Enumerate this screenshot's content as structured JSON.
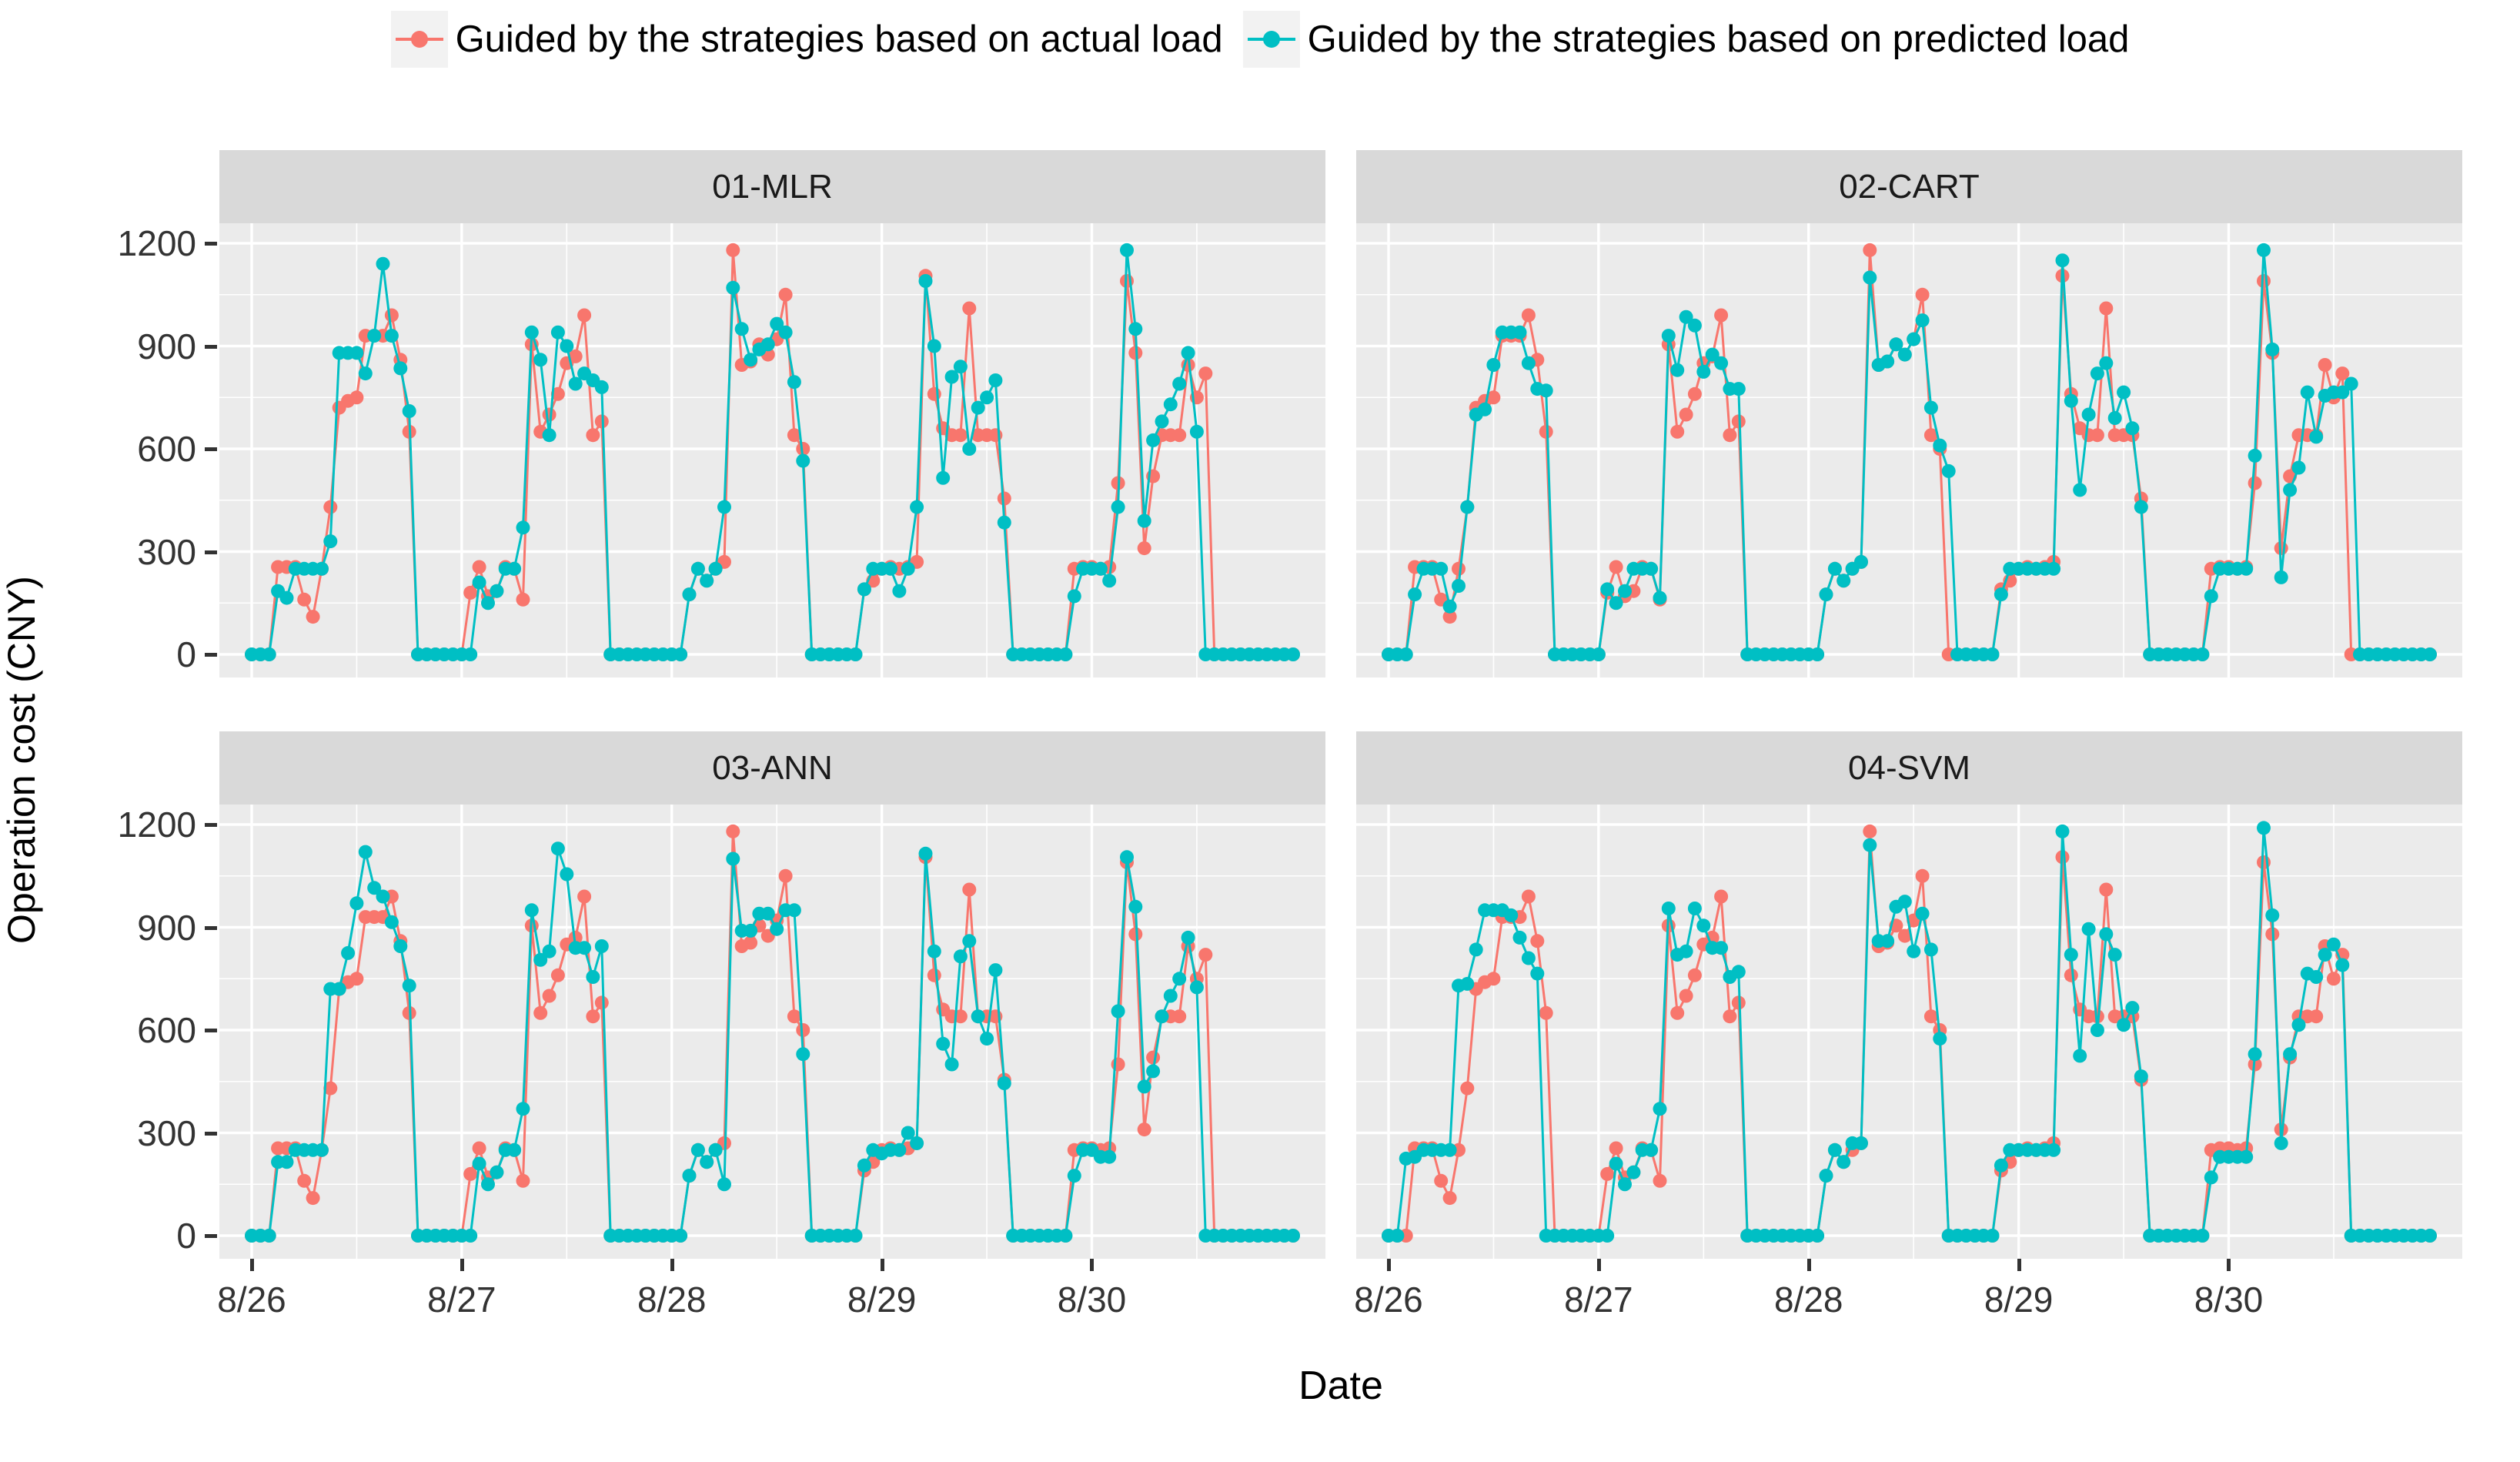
{
  "legend": {
    "items": [
      {
        "id": "actual",
        "label": "Guided by the strategies based on actual load"
      },
      {
        "id": "predicted",
        "label": "Guided by the strategies based on predicted load"
      }
    ]
  },
  "colors": {
    "actual": "#F8766D",
    "predicted": "#00BFC4",
    "panel_bg": "#EBEBEB",
    "strip_bg": "#D9D9D9",
    "grid": "#FFFFFF",
    "legend_key_bg": "#F2F2F2",
    "text": "#000000"
  },
  "chart_data": {
    "type": "line",
    "title": "",
    "xlabel": "Date",
    "ylabel": "Operation cost (CNY)",
    "x_tick_hours": [
      0,
      24,
      48,
      72,
      96
    ],
    "x_tick_labels": [
      "8/26",
      "8/27",
      "8/28",
      "8/29",
      "8/30"
    ],
    "hours_total": 120,
    "y_ticks": [
      0,
      300,
      600,
      900,
      1200
    ],
    "ylim": [
      0,
      1200
    ],
    "grid": "on",
    "legend_position": "top",
    "series": [
      {
        "name": "Guided by the strategies based on actual load",
        "color": "#F8766D",
        "shared_across_facets": true,
        "values": [
          0,
          0,
          0,
          255,
          255,
          255,
          160,
          110,
          250,
          430,
          720,
          740,
          750,
          930,
          930,
          930,
          990,
          860,
          650,
          0,
          0,
          0,
          0,
          0,
          0,
          180,
          255,
          170,
          185,
          255,
          250,
          160,
          905,
          650,
          700,
          760,
          850,
          870,
          990,
          640,
          680,
          0,
          0,
          0,
          0,
          0,
          0,
          0,
          0,
          0,
          175,
          250,
          215,
          250,
          270,
          1180,
          845,
          855,
          905,
          875,
          920,
          1050,
          640,
          600,
          0,
          0,
          0,
          0,
          0,
          0,
          190,
          215,
          250,
          255,
          250,
          255,
          270,
          1105,
          760,
          660,
          640,
          640,
          1010,
          640,
          640,
          640,
          455,
          0,
          0,
          0,
          0,
          0,
          0,
          0,
          250,
          255,
          255,
          250,
          255,
          500,
          1090,
          880,
          310,
          520,
          640,
          640,
          640,
          845,
          750,
          820,
          0,
          0,
          0,
          0,
          0,
          0,
          0,
          0,
          0,
          0
        ]
      }
    ],
    "panels": [
      {
        "facet": "01-MLR",
        "predicted_values": [
          0,
          0,
          0,
          185,
          165,
          250,
          250,
          250,
          250,
          330,
          880,
          880,
          880,
          820,
          930,
          1140,
          930,
          835,
          710,
          0,
          0,
          0,
          0,
          0,
          0,
          0,
          210,
          150,
          185,
          250,
          250,
          370,
          940,
          860,
          640,
          940,
          900,
          790,
          820,
          800,
          780,
          0,
          0,
          0,
          0,
          0,
          0,
          0,
          0,
          0,
          175,
          250,
          215,
          250,
          430,
          1070,
          950,
          860,
          890,
          905,
          965,
          940,
          795,
          565,
          0,
          0,
          0,
          0,
          0,
          0,
          190,
          250,
          250,
          250,
          185,
          250,
          430,
          1090,
          900,
          515,
          810,
          840,
          600,
          720,
          750,
          800,
          385,
          0,
          0,
          0,
          0,
          0,
          0,
          0,
          170,
          250,
          250,
          250,
          215,
          430,
          1180,
          950,
          390,
          625,
          680,
          730,
          790,
          880,
          650,
          0,
          0,
          0,
          0,
          0,
          0,
          0,
          0,
          0,
          0,
          0
        ]
      },
      {
        "facet": "02-CART",
        "predicted_values": [
          0,
          0,
          0,
          175,
          250,
          250,
          250,
          140,
          200,
          430,
          700,
          715,
          845,
          940,
          940,
          940,
          850,
          775,
          770,
          0,
          0,
          0,
          0,
          0,
          0,
          190,
          150,
          185,
          250,
          250,
          250,
          165,
          930,
          830,
          985,
          960,
          825,
          875,
          850,
          775,
          775,
          0,
          0,
          0,
          0,
          0,
          0,
          0,
          0,
          0,
          175,
          250,
          215,
          250,
          270,
          1100,
          845,
          855,
          905,
          875,
          920,
          975,
          720,
          610,
          535,
          0,
          0,
          0,
          0,
          0,
          175,
          250,
          250,
          250,
          250,
          250,
          250,
          1150,
          740,
          480,
          700,
          820,
          850,
          690,
          765,
          660,
          430,
          0,
          0,
          0,
          0,
          0,
          0,
          0,
          170,
          250,
          250,
          250,
          250,
          580,
          1180,
          890,
          225,
          480,
          545,
          765,
          635,
          755,
          765,
          765,
          790,
          0,
          0,
          0,
          0,
          0,
          0,
          0,
          0,
          0
        ]
      },
      {
        "facet": "03-ANN",
        "predicted_values": [
          0,
          0,
          0,
          215,
          215,
          250,
          250,
          250,
          250,
          720,
          720,
          825,
          970,
          1120,
          1015,
          990,
          915,
          845,
          730,
          0,
          0,
          0,
          0,
          0,
          0,
          0,
          210,
          150,
          185,
          250,
          250,
          370,
          950,
          805,
          830,
          1130,
          1055,
          840,
          840,
          755,
          845,
          0,
          0,
          0,
          0,
          0,
          0,
          0,
          0,
          0,
          175,
          250,
          215,
          250,
          150,
          1100,
          890,
          890,
          940,
          940,
          895,
          950,
          950,
          530,
          0,
          0,
          0,
          0,
          0,
          0,
          205,
          250,
          240,
          250,
          250,
          300,
          270,
          1115,
          830,
          560,
          500,
          815,
          860,
          640,
          575,
          775,
          445,
          0,
          0,
          0,
          0,
          0,
          0,
          0,
          175,
          250,
          250,
          230,
          230,
          655,
          1105,
          960,
          435,
          480,
          640,
          700,
          750,
          870,
          725,
          0,
          0,
          0,
          0,
          0,
          0,
          0,
          0,
          0,
          0,
          0
        ]
      },
      {
        "facet": "04-SVM",
        "predicted_values": [
          0,
          0,
          225,
          230,
          250,
          250,
          250,
          250,
          730,
          735,
          835,
          950,
          950,
          950,
          935,
          870,
          810,
          765,
          0,
          0,
          0,
          0,
          0,
          0,
          0,
          0,
          210,
          150,
          185,
          250,
          250,
          370,
          955,
          820,
          830,
          955,
          905,
          840,
          840,
          755,
          770,
          0,
          0,
          0,
          0,
          0,
          0,
          0,
          0,
          0,
          175,
          250,
          215,
          270,
          270,
          1140,
          860,
          860,
          960,
          975,
          830,
          940,
          835,
          575,
          0,
          0,
          0,
          0,
          0,
          0,
          205,
          250,
          250,
          250,
          250,
          250,
          250,
          1180,
          820,
          525,
          895,
          600,
          880,
          820,
          615,
          665,
          465,
          0,
          0,
          0,
          0,
          0,
          0,
          0,
          170,
          230,
          230,
          230,
          230,
          530,
          1190,
          935,
          270,
          530,
          615,
          765,
          755,
          820,
          850,
          790,
          0,
          0,
          0,
          0,
          0,
          0,
          0,
          0,
          0,
          0
        ]
      }
    ]
  }
}
